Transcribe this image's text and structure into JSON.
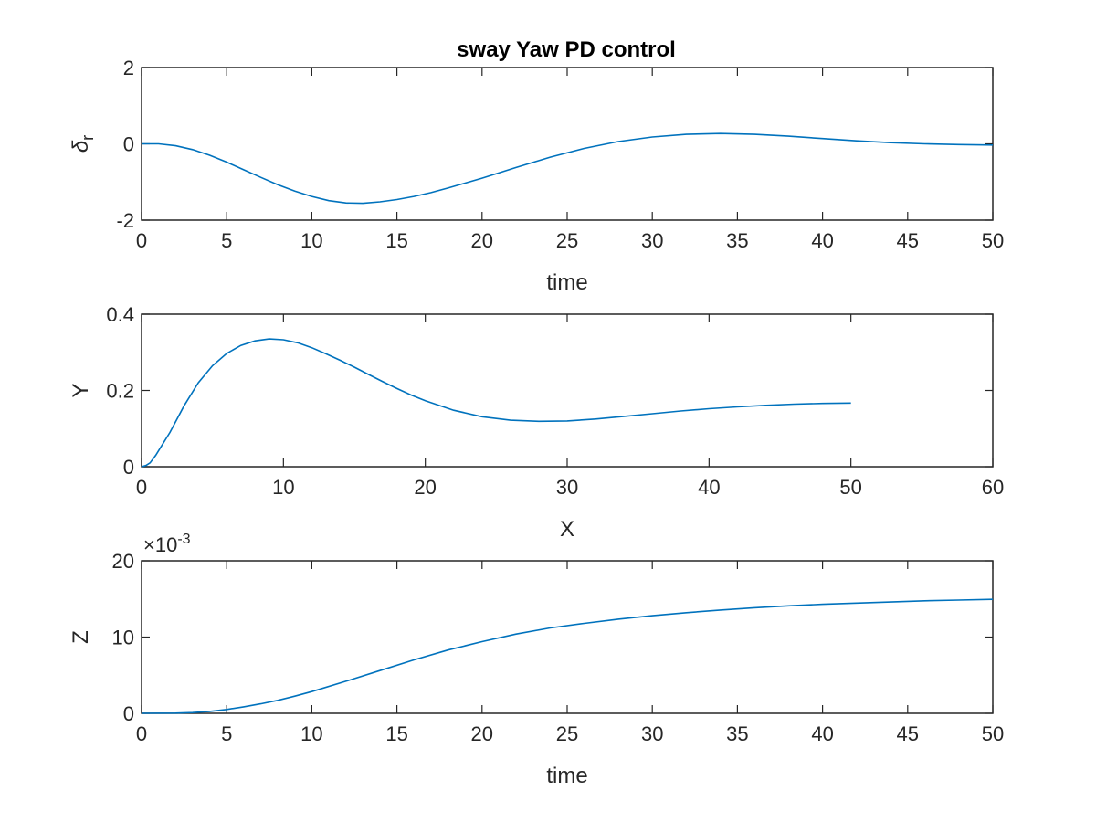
{
  "figure_title": "sway Yaw PD control",
  "chart_data": [
    {
      "type": "line",
      "title": "sway Yaw PD control",
      "xlabel": "time",
      "ylabel": "δr",
      "xlim": [
        0,
        50
      ],
      "ylim": [
        -2,
        2
      ],
      "xticks": [
        0,
        5,
        10,
        15,
        20,
        25,
        30,
        35,
        40,
        45,
        50
      ],
      "yticks": [
        -2,
        0,
        2
      ],
      "xtick_labels": [
        "0",
        "5",
        "10",
        "15",
        "20",
        "25",
        "30",
        "35",
        "40",
        "45",
        "50"
      ],
      "ytick_labels": [
        "-2",
        "0",
        "2"
      ],
      "grid": false,
      "series": [
        {
          "color": "#0072BD",
          "x": [
            0,
            1,
            2,
            3,
            4,
            5,
            6,
            7,
            8,
            9,
            10,
            11,
            12,
            13,
            14,
            15,
            16,
            17,
            18,
            19,
            20,
            22,
            24,
            26,
            28,
            30,
            32,
            34,
            36,
            38,
            40,
            42,
            44,
            46,
            48,
            50
          ],
          "y": [
            0,
            0,
            -0.05,
            -0.15,
            -0.3,
            -0.48,
            -0.68,
            -0.88,
            -1.07,
            -1.24,
            -1.38,
            -1.49,
            -1.55,
            -1.56,
            -1.52,
            -1.46,
            -1.38,
            -1.28,
            -1.16,
            -1.03,
            -0.9,
            -0.62,
            -0.35,
            -0.12,
            0.06,
            0.18,
            0.25,
            0.27,
            0.25,
            0.2,
            0.14,
            0.08,
            0.03,
            0.0,
            -0.02,
            -0.03
          ]
        }
      ]
    },
    {
      "type": "line",
      "xlabel": "X",
      "ylabel": "Y",
      "xlim": [
        0,
        60
      ],
      "ylim": [
        0,
        0.4
      ],
      "xticks": [
        0,
        10,
        20,
        30,
        40,
        50,
        60
      ],
      "yticks": [
        0,
        0.2,
        0.4
      ],
      "xtick_labels": [
        "0",
        "10",
        "20",
        "30",
        "40",
        "50",
        "60"
      ],
      "ytick_labels": [
        "0",
        "0.2",
        "0.4"
      ],
      "grid": false,
      "series": [
        {
          "color": "#0072BD",
          "x": [
            0,
            0.3,
            0.6,
            1,
            1.5,
            2,
            3,
            4,
            5,
            6,
            7,
            8,
            9,
            10,
            11,
            12,
            13,
            14,
            15,
            16,
            17,
            18,
            19,
            20,
            22,
            24,
            26,
            28,
            30,
            32,
            34,
            36,
            38,
            40,
            42,
            44,
            46,
            48,
            50
          ],
          "y": [
            0,
            0.003,
            0.01,
            0.03,
            0.06,
            0.09,
            0.16,
            0.22,
            0.265,
            0.297,
            0.318,
            0.33,
            0.335,
            0.333,
            0.325,
            0.312,
            0.296,
            0.279,
            0.261,
            0.242,
            0.223,
            0.205,
            0.188,
            0.173,
            0.148,
            0.131,
            0.122,
            0.119,
            0.12,
            0.125,
            0.132,
            0.139,
            0.146,
            0.152,
            0.157,
            0.161,
            0.164,
            0.166,
            0.167
          ]
        }
      ]
    },
    {
      "type": "line",
      "xlabel": "time",
      "ylabel": "Z",
      "xlim": [
        0,
        50
      ],
      "ylim": [
        0,
        20
      ],
      "xticks": [
        0,
        5,
        10,
        15,
        20,
        25,
        30,
        35,
        40,
        45,
        50
      ],
      "yticks": [
        0,
        10,
        20
      ],
      "xtick_labels": [
        "0",
        "5",
        "10",
        "15",
        "20",
        "25",
        "30",
        "35",
        "40",
        "45",
        "50"
      ],
      "ytick_labels": [
        "0",
        "10",
        "20"
      ],
      "y_exponent": "×10-3",
      "grid": false,
      "series": [
        {
          "color": "#0072BD",
          "x": [
            0,
            2,
            3,
            4,
            5,
            6,
            7,
            8,
            9,
            10,
            12,
            14,
            16,
            18,
            20,
            22,
            24,
            26,
            28,
            30,
            32,
            34,
            36,
            38,
            40,
            42,
            44,
            46,
            48,
            50
          ],
          "y": [
            0,
            0.02,
            0.1,
            0.25,
            0.5,
            0.85,
            1.25,
            1.7,
            2.25,
            2.85,
            4.2,
            5.6,
            7.0,
            8.3,
            9.4,
            10.4,
            11.2,
            11.8,
            12.35,
            12.8,
            13.2,
            13.55,
            13.85,
            14.1,
            14.3,
            14.45,
            14.6,
            14.75,
            14.85,
            14.95
          ]
        }
      ]
    }
  ]
}
